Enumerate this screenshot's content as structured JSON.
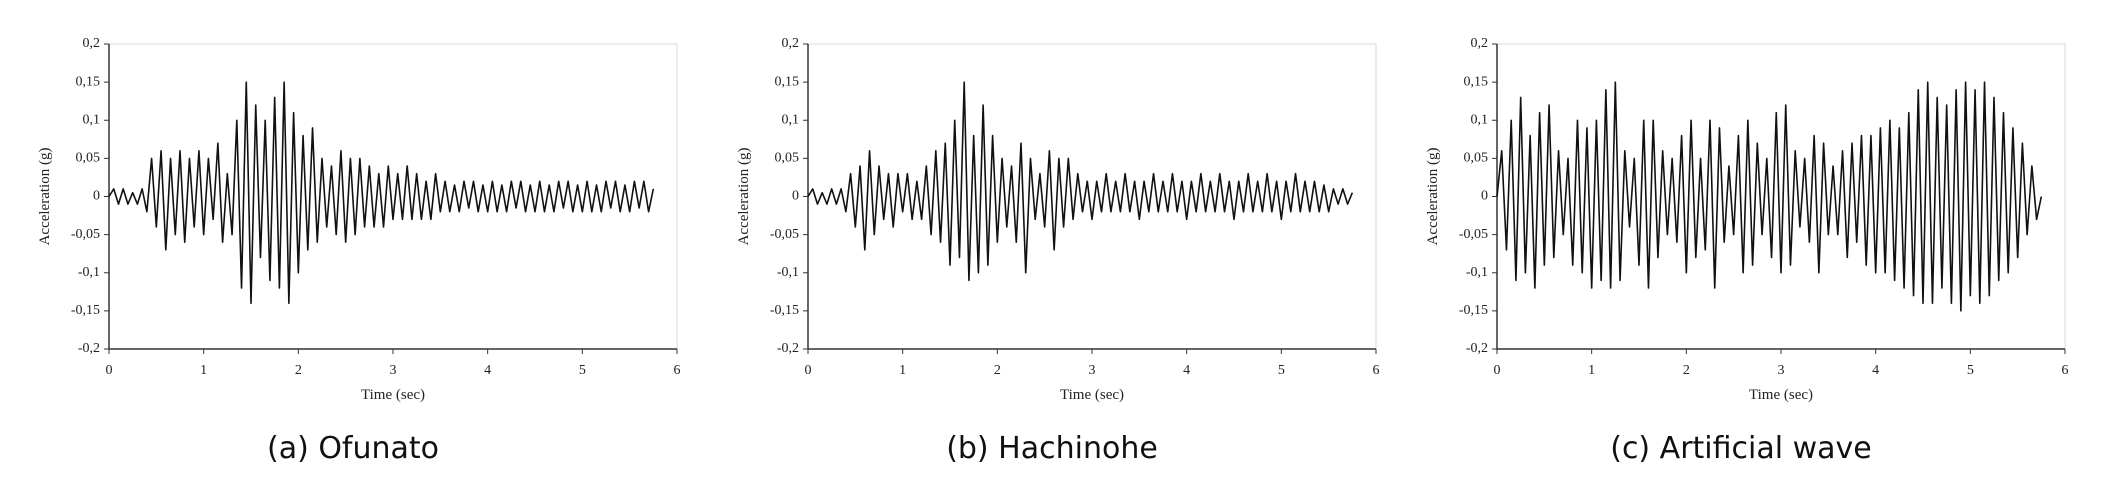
{
  "chart_data": [
    {
      "type": "line",
      "title": "(a) Ofunato",
      "xlabel": "Time (sec)",
      "ylabel": "Acceleration (g)",
      "color": "#111111",
      "xlim": [
        0,
        6
      ],
      "xticks": [
        0,
        1,
        2,
        3,
        4,
        5,
        6
      ],
      "ylim": [
        -0.2,
        0.2
      ],
      "yticks": [
        {
          "value": -0.2,
          "label": "-0,2"
        },
        {
          "value": -0.15,
          "label": "-0,15"
        },
        {
          "value": -0.1,
          "label": "-0,1"
        },
        {
          "value": -0.05,
          "label": "-0,05"
        },
        0,
        {
          "value": 0.05,
          "label": "0,05"
        },
        {
          "value": 0.1,
          "label": "0,1"
        },
        {
          "value": 0.15,
          "label": "0,15"
        },
        {
          "value": 0.2,
          "label": "0,2"
        }
      ],
      "x": [
        0,
        0.05,
        0.1,
        0.15,
        0.2,
        0.25,
        0.3,
        0.35,
        0.4,
        0.45,
        0.5,
        0.55,
        0.6,
        0.65,
        0.7,
        0.75,
        0.8,
        0.85,
        0.9,
        0.95,
        1,
        1.05,
        1.1,
        1.15,
        1.2,
        1.25,
        1.3,
        1.35,
        1.4,
        1.45,
        1.5,
        1.55,
        1.6,
        1.65,
        1.7,
        1.75,
        1.8,
        1.85,
        1.9,
        1.95,
        2,
        2.05,
        2.1,
        2.15,
        2.2,
        2.25,
        2.3,
        2.35,
        2.4,
        2.45,
        2.5,
        2.55,
        2.6,
        2.65,
        2.7,
        2.75,
        2.8,
        2.85,
        2.9,
        2.95,
        3,
        3.05,
        3.1,
        3.15,
        3.2,
        3.25,
        3.3,
        3.35,
        3.4,
        3.45,
        3.5,
        3.55,
        3.6,
        3.65,
        3.7,
        3.75,
        3.8,
        3.85,
        3.9,
        3.95,
        4,
        4.05,
        4.1,
        4.15,
        4.2,
        4.25,
        4.3,
        4.35,
        4.4,
        4.45,
        4.5,
        4.55,
        4.6,
        4.65,
        4.7,
        4.75,
        4.8,
        4.85,
        4.9,
        4.95,
        5,
        5.05,
        5.1,
        5.15,
        5.2,
        5.25,
        5.3,
        5.35,
        5.4,
        5.45,
        5.5,
        5.55,
        5.6,
        5.65,
        5.7,
        5.75
      ],
      "values": [
        0,
        0.01,
        -0.01,
        0.01,
        -0.01,
        0.005,
        -0.01,
        0.01,
        -0.02,
        0.05,
        -0.04,
        0.06,
        -0.07,
        0.05,
        -0.05,
        0.06,
        -0.06,
        0.05,
        -0.04,
        0.06,
        -0.05,
        0.05,
        -0.03,
        0.07,
        -0.06,
        0.03,
        -0.05,
        0.1,
        -0.12,
        0.15,
        -0.14,
        0.12,
        -0.08,
        0.1,
        -0.11,
        0.13,
        -0.12,
        0.15,
        -0.14,
        0.11,
        -0.1,
        0.08,
        -0.07,
        0.09,
        -0.06,
        0.05,
        -0.04,
        0.04,
        -0.05,
        0.06,
        -0.06,
        0.05,
        -0.05,
        0.05,
        -0.04,
        0.04,
        -0.04,
        0.03,
        -0.04,
        0.04,
        -0.03,
        0.03,
        -0.03,
        0.04,
        -0.03,
        0.03,
        -0.03,
        0.02,
        -0.03,
        0.03,
        -0.02,
        0.02,
        -0.02,
        0.015,
        -0.02,
        0.02,
        -0.015,
        0.02,
        -0.02,
        0.015,
        -0.02,
        0.02,
        -0.02,
        0.015,
        -0.02,
        0.02,
        -0.015,
        0.02,
        -0.02,
        0.015,
        -0.02,
        0.02,
        -0.02,
        0.015,
        -0.02,
        0.02,
        -0.015,
        0.02,
        -0.02,
        0.015,
        -0.02,
        0.02,
        -0.02,
        0.015,
        -0.02,
        0.02,
        -0.015,
        0.02,
        -0.02,
        0.015,
        -0.02,
        0.02,
        -0.015,
        0.02,
        -0.02,
        0.01
      ]
    },
    {
      "type": "line",
      "title": "(b) Hachinohe",
      "xlabel": "Time (sec)",
      "ylabel": "Acceleration (g)",
      "color": "#111111",
      "xlim": [
        0,
        6
      ],
      "xticks": [
        0,
        1,
        2,
        3,
        4,
        5,
        6
      ],
      "ylim": [
        -0.2,
        0.2
      ],
      "yticks": [
        {
          "value": -0.2,
          "label": "-0,2"
        },
        {
          "value": -0.15,
          "label": "-0,15"
        },
        {
          "value": -0.1,
          "label": "-0,1"
        },
        {
          "value": -0.05,
          "label": "-0,05"
        },
        0,
        {
          "value": 0.05,
          "label": "0,05"
        },
        {
          "value": 0.1,
          "label": "0,1"
        },
        {
          "value": 0.15,
          "label": "0,15"
        },
        {
          "value": 0.2,
          "label": "0,2"
        }
      ],
      "x": [
        0,
        0.05,
        0.1,
        0.15,
        0.2,
        0.25,
        0.3,
        0.35,
        0.4,
        0.45,
        0.5,
        0.55,
        0.6,
        0.65,
        0.7,
        0.75,
        0.8,
        0.85,
        0.9,
        0.95,
        1,
        1.05,
        1.1,
        1.15,
        1.2,
        1.25,
        1.3,
        1.35,
        1.4,
        1.45,
        1.5,
        1.55,
        1.6,
        1.65,
        1.7,
        1.75,
        1.8,
        1.85,
        1.9,
        1.95,
        2,
        2.05,
        2.1,
        2.15,
        2.2,
        2.25,
        2.3,
        2.35,
        2.4,
        2.45,
        2.5,
        2.55,
        2.6,
        2.65,
        2.7,
        2.75,
        2.8,
        2.85,
        2.9,
        2.95,
        3,
        3.05,
        3.1,
        3.15,
        3.2,
        3.25,
        3.3,
        3.35,
        3.4,
        3.45,
        3.5,
        3.55,
        3.6,
        3.65,
        3.7,
        3.75,
        3.8,
        3.85,
        3.9,
        3.95,
        4,
        4.05,
        4.1,
        4.15,
        4.2,
        4.25,
        4.3,
        4.35,
        4.4,
        4.45,
        4.5,
        4.55,
        4.6,
        4.65,
        4.7,
        4.75,
        4.8,
        4.85,
        4.9,
        4.95,
        5,
        5.05,
        5.1,
        5.15,
        5.2,
        5.25,
        5.3,
        5.35,
        5.4,
        5.45,
        5.5,
        5.55,
        5.6,
        5.65,
        5.7,
        5.75
      ],
      "values": [
        0,
        0.01,
        -0.01,
        0.005,
        -0.01,
        0.01,
        -0.01,
        0.01,
        -0.02,
        0.03,
        -0.04,
        0.04,
        -0.07,
        0.06,
        -0.05,
        0.04,
        -0.03,
        0.03,
        -0.04,
        0.03,
        -0.02,
        0.03,
        -0.03,
        0.02,
        -0.03,
        0.04,
        -0.05,
        0.06,
        -0.06,
        0.07,
        -0.09,
        0.1,
        -0.08,
        0.15,
        -0.11,
        0.08,
        -0.1,
        0.12,
        -0.09,
        0.08,
        -0.06,
        0.05,
        -0.04,
        0.04,
        -0.06,
        0.07,
        -0.1,
        0.05,
        -0.03,
        0.03,
        -0.04,
        0.06,
        -0.07,
        0.05,
        -0.04,
        0.05,
        -0.03,
        0.03,
        -0.02,
        0.02,
        -0.03,
        0.02,
        -0.02,
        0.03,
        -0.02,
        0.02,
        -0.02,
        0.03,
        -0.02,
        0.02,
        -0.03,
        0.02,
        -0.02,
        0.03,
        -0.02,
        0.02,
        -0.02,
        0.03,
        -0.02,
        0.02,
        -0.03,
        0.02,
        -0.02,
        0.03,
        -0.02,
        0.02,
        -0.02,
        0.03,
        -0.02,
        0.02,
        -0.03,
        0.02,
        -0.02,
        0.03,
        -0.02,
        0.02,
        -0.02,
        0.03,
        -0.02,
        0.02,
        -0.03,
        0.02,
        -0.02,
        0.03,
        -0.02,
        0.02,
        -0.02,
        0.02,
        -0.02,
        0.015,
        -0.02,
        0.01,
        -0.01,
        0.01,
        -0.01,
        0.005
      ]
    },
    {
      "type": "line",
      "title": "(c) Artificial wave",
      "xlabel": "Time (sec)",
      "ylabel": "Acceleration (g)",
      "color": "#111111",
      "xlim": [
        0,
        6
      ],
      "xticks": [
        0,
        1,
        2,
        3,
        4,
        5,
        6
      ],
      "ylim": [
        -0.2,
        0.2
      ],
      "yticks": [
        {
          "value": -0.2,
          "label": "-0,2"
        },
        {
          "value": -0.15,
          "label": "-0,15"
        },
        {
          "value": -0.1,
          "label": "-0,1"
        },
        {
          "value": -0.05,
          "label": "-0,05"
        },
        0,
        {
          "value": 0.05,
          "label": "0,05"
        },
        {
          "value": 0.1,
          "label": "0,1"
        },
        {
          "value": 0.15,
          "label": "0,15"
        },
        {
          "value": 0.2,
          "label": "0,2"
        }
      ],
      "x": [
        0,
        0.05,
        0.1,
        0.15,
        0.2,
        0.25,
        0.3,
        0.35,
        0.4,
        0.45,
        0.5,
        0.55,
        0.6,
        0.65,
        0.7,
        0.75,
        0.8,
        0.85,
        0.9,
        0.95,
        1,
        1.05,
        1.1,
        1.15,
        1.2,
        1.25,
        1.3,
        1.35,
        1.4,
        1.45,
        1.5,
        1.55,
        1.6,
        1.65,
        1.7,
        1.75,
        1.8,
        1.85,
        1.9,
        1.95,
        2,
        2.05,
        2.1,
        2.15,
        2.2,
        2.25,
        2.3,
        2.35,
        2.4,
        2.45,
        2.5,
        2.55,
        2.6,
        2.65,
        2.7,
        2.75,
        2.8,
        2.85,
        2.9,
        2.95,
        3,
        3.05,
        3.1,
        3.15,
        3.2,
        3.25,
        3.3,
        3.35,
        3.4,
        3.45,
        3.5,
        3.55,
        3.6,
        3.65,
        3.7,
        3.75,
        3.8,
        3.85,
        3.9,
        3.95,
        4,
        4.05,
        4.1,
        4.15,
        4.2,
        4.25,
        4.3,
        4.35,
        4.4,
        4.45,
        4.5,
        4.55,
        4.6,
        4.65,
        4.7,
        4.75,
        4.8,
        4.85,
        4.9,
        4.95,
        5,
        5.05,
        5.1,
        5.15,
        5.2,
        5.25,
        5.3,
        5.35,
        5.4,
        5.45,
        5.5,
        5.55,
        5.6,
        5.65,
        5.7,
        5.75
      ],
      "values": [
        0,
        0.06,
        -0.07,
        0.1,
        -0.11,
        0.13,
        -0.1,
        0.08,
        -0.12,
        0.11,
        -0.09,
        0.12,
        -0.08,
        0.06,
        -0.05,
        0.05,
        -0.09,
        0.1,
        -0.1,
        0.09,
        -0.12,
        0.1,
        -0.11,
        0.14,
        -0.12,
        0.15,
        -0.11,
        0.06,
        -0.04,
        0.05,
        -0.09,
        0.1,
        -0.12,
        0.1,
        -0.08,
        0.06,
        -0.05,
        0.05,
        -0.06,
        0.08,
        -0.1,
        0.1,
        -0.08,
        0.05,
        -0.07,
        0.1,
        -0.12,
        0.09,
        -0.06,
        0.04,
        -0.05,
        0.08,
        -0.1,
        0.1,
        -0.09,
        0.07,
        -0.05,
        0.05,
        -0.08,
        0.11,
        -0.1,
        0.12,
        -0.09,
        0.06,
        -0.04,
        0.05,
        -0.06,
        0.08,
        -0.1,
        0.07,
        -0.05,
        0.04,
        -0.05,
        0.06,
        -0.08,
        0.07,
        -0.06,
        0.08,
        -0.09,
        0.08,
        -0.1,
        0.09,
        -0.1,
        0.1,
        -0.11,
        0.09,
        -0.12,
        0.11,
        -0.13,
        0.14,
        -0.14,
        0.15,
        -0.14,
        0.13,
        -0.12,
        0.12,
        -0.14,
        0.14,
        -0.15,
        0.15,
        -0.13,
        0.14,
        -0.14,
        0.15,
        -0.13,
        0.13,
        -0.11,
        0.11,
        -0.1,
        0.09,
        -0.08,
        0.07,
        -0.05,
        0.04,
        -0.03,
        0
      ]
    }
  ]
}
